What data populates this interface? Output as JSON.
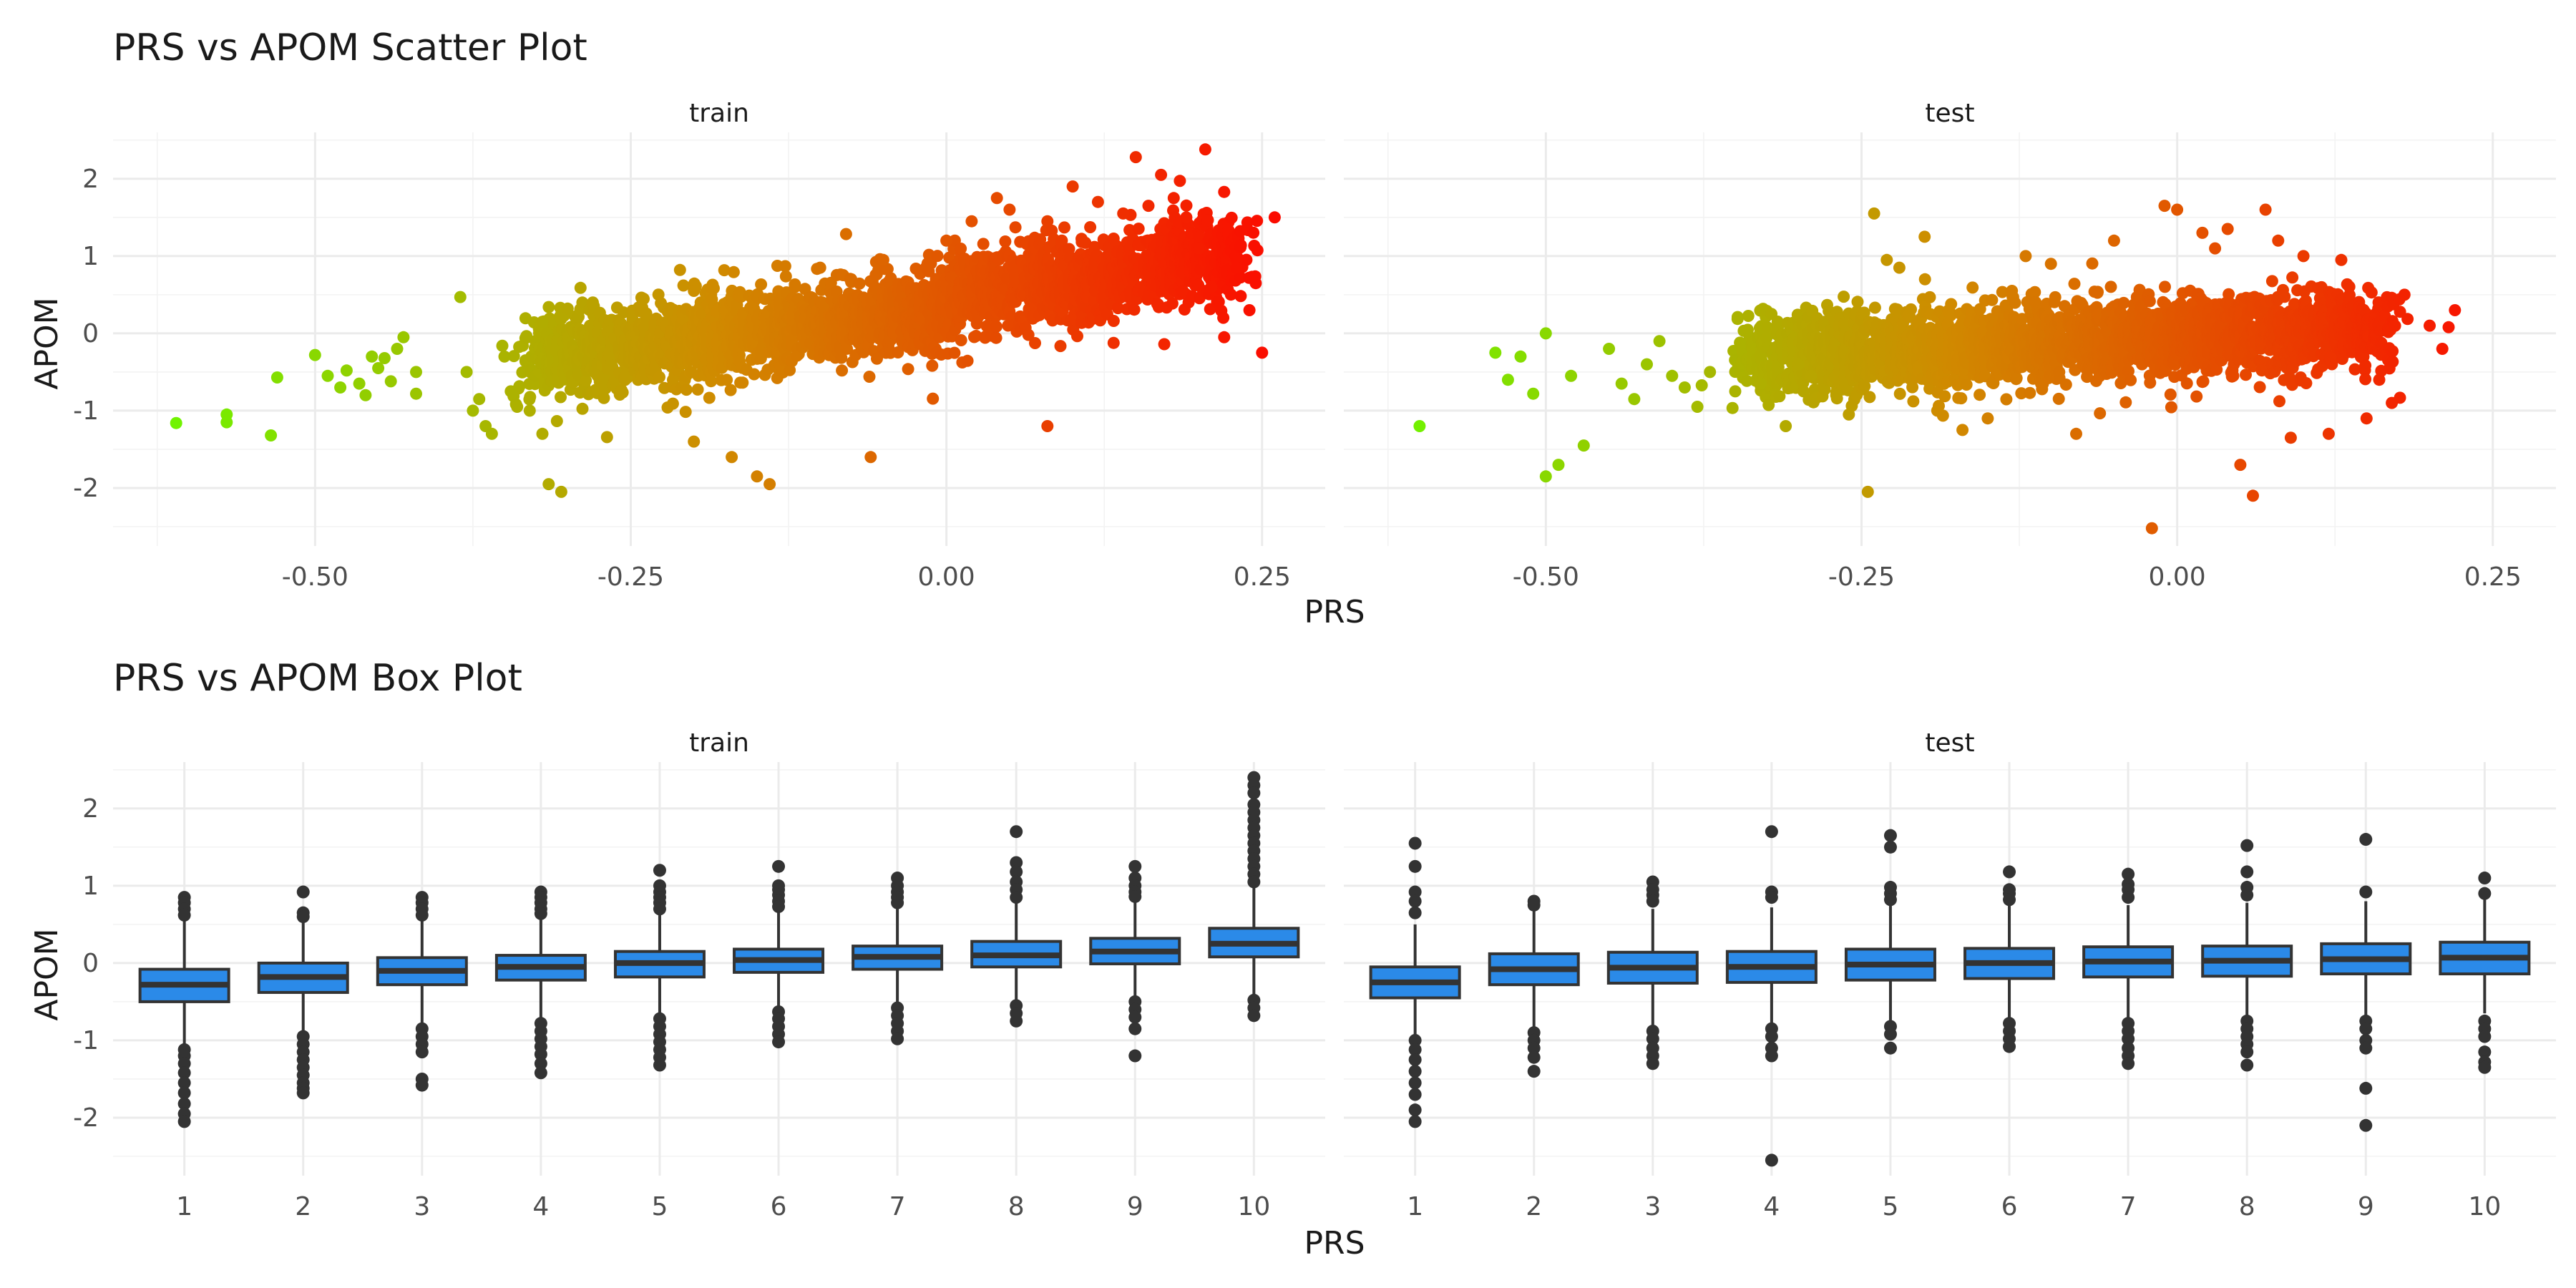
{
  "chart_data": [
    {
      "type": "scatter",
      "title": "PRS vs APOM Scatter Plot",
      "xlabel": "PRS",
      "ylabel": "APOM",
      "facets": [
        "train",
        "test"
      ],
      "xlim": [
        -0.66,
        0.3
      ],
      "ylim": [
        -2.75,
        2.6
      ],
      "xticks": [
        -0.5,
        -0.25,
        0.0,
        0.25
      ],
      "xtick_labels": [
        "-0.50",
        "-0.25",
        "0.00",
        "0.25"
      ],
      "yticks": [
        -2,
        -1,
        0,
        1,
        2
      ],
      "ytick_labels": [
        "-2",
        "-1",
        "0",
        "1",
        "2"
      ],
      "grid": true,
      "color_scale": {
        "low": "#66ff00",
        "mid": "#d08a00",
        "high": "#ff0000",
        "variable": "PRS"
      },
      "series": [
        {
          "facet": "train",
          "points": [
            [
              -0.61,
              -1.16
            ],
            [
              -0.57,
              -1.05
            ],
            [
              -0.57,
              -1.15
            ],
            [
              -0.535,
              -1.32
            ],
            [
              -0.53,
              -0.57
            ],
            [
              -0.5,
              -0.28
            ],
            [
              -0.49,
              -0.55
            ],
            [
              -0.48,
              -0.7
            ],
            [
              -0.475,
              -0.48
            ],
            [
              -0.465,
              -0.65
            ],
            [
              -0.46,
              -0.8
            ],
            [
              -0.455,
              -0.3
            ],
            [
              -0.45,
              -0.45
            ],
            [
              -0.445,
              -0.32
            ],
            [
              -0.44,
              -0.62
            ],
            [
              -0.435,
              -0.2
            ],
            [
              -0.43,
              -0.05
            ],
            [
              -0.42,
              -0.5
            ],
            [
              -0.42,
              -0.78
            ],
            [
              -0.385,
              0.47
            ],
            [
              -0.38,
              -0.5
            ],
            [
              -0.375,
              -1.0
            ],
            [
              -0.37,
              -0.85
            ],
            [
              -0.365,
              -1.2
            ],
            [
              -0.36,
              -1.3
            ],
            [
              -0.35,
              -0.3
            ],
            [
              -0.345,
              -0.75
            ],
            [
              -0.34,
              -0.95
            ],
            [
              -0.33,
              -1.0
            ],
            [
              -0.32,
              -1.3
            ],
            [
              -0.315,
              -1.95
            ],
            [
              -0.305,
              -2.05
            ],
            [
              -0.32,
              0.15
            ],
            [
              -0.3,
              0.32
            ],
            [
              -0.28,
              0.4
            ],
            [
              -0.24,
              0.45
            ],
            [
              -0.2,
              -1.4
            ],
            [
              -0.2,
              0.55
            ],
            [
              -0.17,
              -1.6
            ],
            [
              -0.15,
              -1.85
            ],
            [
              -0.14,
              -1.95
            ],
            [
              -0.12,
              0.6
            ],
            [
              -0.1,
              0.85
            ],
            [
              -0.06,
              -1.6
            ],
            [
              -0.05,
              0.95
            ],
            [
              0.0,
              1.2
            ],
            [
              0.02,
              1.45
            ],
            [
              0.04,
              1.75
            ],
            [
              0.05,
              1.6
            ],
            [
              0.08,
              1.45
            ],
            [
              0.08,
              -1.2
            ],
            [
              0.1,
              1.9
            ],
            [
              0.12,
              1.7
            ],
            [
              0.14,
              1.55
            ],
            [
              0.15,
              2.28
            ],
            [
              0.16,
              1.65
            ],
            [
              0.17,
              2.05
            ],
            [
              0.18,
              1.75
            ],
            [
              0.19,
              1.5
            ],
            [
              0.2,
              1.1
            ],
            [
              0.205,
              2.38
            ],
            [
              0.21,
              0.6
            ],
            [
              0.22,
              1.83
            ],
            [
              0.22,
              -0.05
            ],
            [
              0.23,
              0.95
            ],
            [
              0.24,
              0.3
            ],
            [
              0.245,
              0.65
            ],
            [
              0.26,
              1.5
            ],
            [
              0.25,
              -0.25
            ],
            [
              0.23,
              0.85
            ]
          ]
        },
        {
          "facet": "test",
          "points": [
            [
              -0.6,
              -1.2
            ],
            [
              -0.5,
              -1.85
            ],
            [
              -0.49,
              -1.7
            ],
            [
              -0.47,
              -1.45
            ],
            [
              -0.5,
              0.0
            ],
            [
              -0.52,
              -0.3
            ],
            [
              -0.53,
              -0.6
            ],
            [
              -0.54,
              -0.25
            ],
            [
              -0.51,
              -0.78
            ],
            [
              -0.48,
              -0.55
            ],
            [
              -0.45,
              -0.2
            ],
            [
              -0.44,
              -0.65
            ],
            [
              -0.43,
              -0.85
            ],
            [
              -0.42,
              -0.4
            ],
            [
              -0.41,
              -0.1
            ],
            [
              -0.4,
              -0.55
            ],
            [
              -0.39,
              -0.7
            ],
            [
              -0.38,
              -0.95
            ],
            [
              -0.37,
              -0.5
            ],
            [
              -0.35,
              -0.75
            ],
            [
              -0.33,
              -0.65
            ],
            [
              -0.31,
              -1.2
            ],
            [
              -0.3,
              -0.4
            ],
            [
              -0.29,
              -0.55
            ],
            [
              -0.27,
              -0.8
            ],
            [
              -0.26,
              -1.05
            ],
            [
              -0.245,
              -2.05
            ],
            [
              -0.24,
              1.55
            ],
            [
              -0.23,
              0.95
            ],
            [
              -0.22,
              0.85
            ],
            [
              -0.2,
              1.25
            ],
            [
              -0.19,
              -1.0
            ],
            [
              -0.17,
              -1.25
            ],
            [
              -0.15,
              -1.1
            ],
            [
              -0.12,
              1.0
            ],
            [
              -0.1,
              0.9
            ],
            [
              -0.08,
              -1.3
            ],
            [
              -0.05,
              1.2
            ],
            [
              -0.02,
              -2.52
            ],
            [
              -0.01,
              1.65
            ],
            [
              0.0,
              1.6
            ],
            [
              0.02,
              1.3
            ],
            [
              0.03,
              1.1
            ],
            [
              0.04,
              1.35
            ],
            [
              0.05,
              -1.7
            ],
            [
              0.06,
              -2.1
            ],
            [
              0.07,
              1.6
            ],
            [
              0.08,
              1.2
            ],
            [
              0.09,
              -1.35
            ],
            [
              0.1,
              1.0
            ],
            [
              0.12,
              -1.3
            ],
            [
              0.13,
              0.95
            ],
            [
              0.15,
              -1.1
            ],
            [
              0.16,
              -0.6
            ],
            [
              0.17,
              -0.9
            ],
            [
              0.18,
              0.5
            ],
            [
              0.2,
              0.1
            ],
            [
              0.21,
              -0.2
            ],
            [
              0.22,
              0.3
            ],
            [
              0.215,
              0.08
            ]
          ]
        }
      ]
    },
    {
      "type": "box",
      "title": "PRS vs APOM Box Plot",
      "xlabel": "PRS",
      "ylabel": "APOM",
      "facets": [
        "train",
        "test"
      ],
      "categories": [
        "1",
        "2",
        "3",
        "4",
        "5",
        "6",
        "7",
        "8",
        "9",
        "10"
      ],
      "ylim": [
        -2.75,
        2.6
      ],
      "yticks": [
        -2,
        -1,
        0,
        1,
        2
      ],
      "ytick_labels": [
        "-2",
        "-1",
        "0",
        "1",
        "2"
      ],
      "grid": true,
      "fill_color": "#2b8ae8",
      "series": [
        {
          "facet": "train",
          "boxes": [
            {
              "q1": -0.5,
              "median": -0.28,
              "q3": -0.08,
              "lower": -1.05,
              "upper": 0.55,
              "outliers": [
                0.85,
                0.78,
                0.7,
                0.62,
                -1.12,
                -1.2,
                -1.3,
                -1.42,
                -1.55,
                -1.68,
                -1.82,
                -1.95,
                -2.05
              ]
            },
            {
              "q1": -0.38,
              "median": -0.18,
              "q3": 0.0,
              "lower": -0.9,
              "upper": 0.55,
              "outliers": [
                0.92,
                0.65,
                0.6,
                -0.95,
                -1.05,
                -1.15,
                -1.25,
                -1.35,
                -1.45,
                -1.55,
                -1.62,
                -1.68
              ]
            },
            {
              "q1": -0.28,
              "median": -0.1,
              "q3": 0.07,
              "lower": -0.8,
              "upper": 0.58,
              "outliers": [
                0.85,
                0.78,
                0.7,
                0.62,
                -0.85,
                -0.95,
                -1.05,
                -1.15,
                -1.5,
                -1.58
              ]
            },
            {
              "q1": -0.22,
              "median": -0.05,
              "q3": 0.1,
              "lower": -0.72,
              "upper": 0.6,
              "outliers": [
                0.92,
                0.85,
                0.78,
                0.7,
                0.64,
                -0.78,
                -0.88,
                -0.98,
                -1.08,
                -1.18,
                -1.3,
                -1.42
              ]
            },
            {
              "q1": -0.18,
              "median": 0.0,
              "q3": 0.15,
              "lower": -0.68,
              "upper": 0.65,
              "outliers": [
                1.2,
                1.0,
                0.92,
                0.85,
                0.78,
                0.7,
                -0.72,
                -0.82,
                -0.92,
                -1.02,
                -1.12,
                -1.22,
                -1.32
              ]
            },
            {
              "q1": -0.12,
              "median": 0.04,
              "q3": 0.18,
              "lower": -0.6,
              "upper": 0.68,
              "outliers": [
                1.25,
                1.0,
                0.95,
                0.88,
                0.8,
                0.73,
                -0.63,
                -0.72,
                -0.82,
                -0.92,
                -1.02
              ]
            },
            {
              "q1": -0.08,
              "median": 0.08,
              "q3": 0.22,
              "lower": -0.55,
              "upper": 0.72,
              "outliers": [
                1.1,
                1.0,
                0.92,
                0.85,
                0.78,
                -0.58,
                -0.68,
                -0.78,
                -0.88,
                -0.98
              ]
            },
            {
              "q1": -0.05,
              "median": 0.1,
              "q3": 0.28,
              "lower": -0.52,
              "upper": 0.78,
              "outliers": [
                1.7,
                1.3,
                1.18,
                1.05,
                0.95,
                0.85,
                -0.55,
                -0.65,
                -0.75
              ]
            },
            {
              "q1": -0.01,
              "median": 0.15,
              "q3": 0.32,
              "lower": -0.45,
              "upper": 0.82,
              "outliers": [
                1.25,
                1.1,
                1.0,
                0.92,
                0.86,
                -0.5,
                -0.6,
                -0.7,
                -0.85,
                -1.2
              ]
            },
            {
              "q1": 0.08,
              "median": 0.25,
              "q3": 0.45,
              "lower": -0.42,
              "upper": 0.98,
              "outliers": [
                2.4,
                2.3,
                2.2,
                2.05,
                1.95,
                1.85,
                1.75,
                1.65,
                1.55,
                1.45,
                1.35,
                1.25,
                1.15,
                1.05,
                -0.48,
                -0.58,
                -0.68
              ]
            }
          ]
        },
        {
          "facet": "test",
          "boxes": [
            {
              "q1": -0.45,
              "median": -0.25,
              "q3": -0.05,
              "lower": -0.95,
              "upper": 0.5,
              "outliers": [
                1.55,
                1.25,
                0.92,
                0.8,
                0.65,
                -1.0,
                -1.12,
                -1.25,
                -1.4,
                -1.55,
                -1.7,
                -1.9,
                -2.05
              ]
            },
            {
              "q1": -0.28,
              "median": -0.08,
              "q3": 0.12,
              "lower": -0.85,
              "upper": 0.68,
              "outliers": [
                0.8,
                0.75,
                -0.9,
                -1.0,
                -1.1,
                -1.22,
                -1.4
              ]
            },
            {
              "q1": -0.26,
              "median": -0.06,
              "q3": 0.14,
              "lower": -0.8,
              "upper": 0.7,
              "outliers": [
                1.05,
                0.95,
                0.88,
                0.8,
                -0.88,
                -0.98,
                -1.1,
                -1.2,
                -1.3
              ]
            },
            {
              "q1": -0.25,
              "median": -0.05,
              "q3": 0.15,
              "lower": -0.78,
              "upper": 0.72,
              "outliers": [
                1.7,
                0.92,
                0.85,
                -0.85,
                -0.95,
                -1.1,
                -1.2,
                -2.55
              ]
            },
            {
              "q1": -0.22,
              "median": -0.02,
              "q3": 0.18,
              "lower": -0.75,
              "upper": 0.75,
              "outliers": [
                1.65,
                1.5,
                0.98,
                0.9,
                0.82,
                -0.82,
                -0.92,
                -1.1
              ]
            },
            {
              "q1": -0.2,
              "median": 0.0,
              "q3": 0.19,
              "lower": -0.72,
              "upper": 0.75,
              "outliers": [
                1.18,
                0.95,
                0.9,
                0.82,
                -0.78,
                -0.88,
                -0.98,
                -1.08
              ]
            },
            {
              "q1": -0.18,
              "median": 0.02,
              "q3": 0.21,
              "lower": -0.7,
              "upper": 0.75,
              "outliers": [
                1.15,
                1.02,
                0.95,
                0.85,
                -0.78,
                -0.88,
                -0.98,
                -1.1,
                -1.2,
                -1.3
              ]
            },
            {
              "q1": -0.17,
              "median": 0.03,
              "q3": 0.22,
              "lower": -0.7,
              "upper": 0.78,
              "outliers": [
                1.52,
                1.18,
                0.98,
                0.88,
                -0.75,
                -0.85,
                -0.95,
                -1.05,
                -1.15,
                -1.32
              ]
            },
            {
              "q1": -0.14,
              "median": 0.05,
              "q3": 0.25,
              "lower": -0.68,
              "upper": 0.8,
              "outliers": [
                1.6,
                0.92,
                -0.75,
                -0.85,
                -1.0,
                -1.1,
                -1.62,
                -2.1
              ]
            },
            {
              "q1": -0.14,
              "median": 0.07,
              "q3": 0.27,
              "lower": -0.65,
              "upper": 0.85,
              "outliers": [
                1.1,
                0.9,
                -0.75,
                -0.85,
                -0.95,
                -1.15,
                -1.28,
                -1.35
              ]
            }
          ]
        }
      ]
    }
  ]
}
